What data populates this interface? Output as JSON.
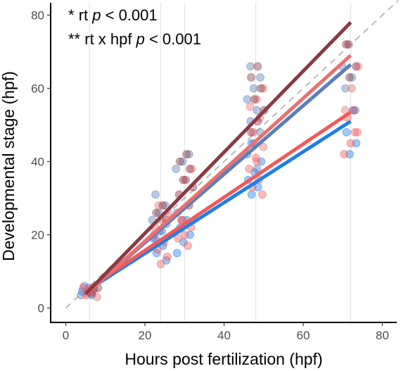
{
  "chart_data": {
    "type": "scatter",
    "xlabel": "Hours post fertilization (hpf)",
    "ylabel": "Developmental stage (hpf)",
    "xlim": [
      -4,
      84
    ],
    "ylim": [
      -3,
      81
    ],
    "xticks": [
      0,
      20,
      40,
      60,
      80
    ],
    "yticks": [
      0,
      20,
      40,
      60,
      80
    ],
    "x_gridlines": [
      6,
      24,
      30,
      48,
      72
    ],
    "grid": "vertical only",
    "legend": "none",
    "reference_line": {
      "style": "dashed",
      "color": "#bbbbbb",
      "from": [
        0,
        0
      ],
      "to": [
        84,
        84
      ]
    },
    "annotations": [
      {
        "stars": "* ",
        "text": "rt  ",
        "p_label": "p",
        "rel": " < 0.001",
        "position": "top-left"
      },
      {
        "stars": "** ",
        "text": "rt x hpf  ",
        "p_label": "p",
        "rel": " < 0.001",
        "position": "top-left"
      }
    ],
    "series": [
      {
        "color": "#5a7fb8",
        "line": {
          "x": [
            5,
            72
          ],
          "y": [
            3.8,
            66.5
          ]
        },
        "points": [
          {
            "x": 6,
            "ys": [
              3.5,
              4.5,
              5.5,
              6
            ]
          },
          {
            "x": 24,
            "ys": [
              19,
              21,
              24,
              26,
              28,
              31
            ]
          },
          {
            "x": 30,
            "ys": [
              24,
              28,
              31,
              35,
              38,
              40,
              42
            ]
          },
          {
            "x": 48,
            "ys": [
              38,
              42,
              45,
              48,
              51,
              54,
              57,
              60,
              63,
              66
            ]
          },
          {
            "x": 72,
            "ys": [
              54,
              60,
              63,
              66,
              72
            ]
          }
        ]
      },
      {
        "color": "#1f7fe6",
        "line": {
          "x": [
            5,
            72
          ],
          "y": [
            4.5,
            51
          ]
        },
        "points": [
          {
            "x": 6,
            "ys": [
              3.5,
              4.5,
              5.5
            ]
          },
          {
            "x": 24,
            "ys": [
              13,
              15,
              17,
              19,
              21,
              23
            ]
          },
          {
            "x": 30,
            "ys": [
              15,
              18,
              20,
              22,
              24,
              26
            ]
          },
          {
            "x": 48,
            "ys": [
              31,
              33,
              35,
              37,
              40,
              45
            ]
          },
          {
            "x": 72,
            "ys": [
              42,
              45,
              48,
              54
            ]
          }
        ]
      },
      {
        "color": "#f05a5a",
        "line": {
          "x": [
            5,
            72
          ],
          "y": [
            4.8,
            53.5
          ]
        },
        "points": [
          {
            "x": 6,
            "ys": [
              3.5,
              4.5,
              5.5
            ]
          },
          {
            "x": 24,
            "ys": [
              12,
              14,
              16,
              18,
              20
            ]
          },
          {
            "x": 30,
            "ys": [
              17,
              19,
              20,
              22,
              24
            ]
          },
          {
            "x": 48,
            "ys": [
              31,
              33,
              35,
              38,
              41
            ]
          },
          {
            "x": 72,
            "ys": [
              42,
              45,
              48,
              52,
              54
            ]
          }
        ]
      },
      {
        "color": "#e87070",
        "line": {
          "x": [
            5,
            72
          ],
          "y": [
            3.6,
            69
          ]
        },
        "points": [
          {
            "x": 6,
            "ys": [
              3,
              4,
              5
            ]
          },
          {
            "x": 24,
            "ys": [
              22,
              24,
              26,
              28
            ]
          },
          {
            "x": 30,
            "ys": [
              24,
              28,
              31,
              35,
              38
            ]
          },
          {
            "x": 48,
            "ys": [
              40,
              44,
              48,
              52,
              55,
              57,
              60
            ]
          },
          {
            "x": 72,
            "ys": [
              48,
              54,
              60,
              66,
              72
            ]
          }
        ]
      },
      {
        "color": "#8a3a45",
        "line": {
          "x": [
            5,
            72
          ],
          "y": [
            3.8,
            78
          ]
        },
        "points": [
          {
            "x": 6,
            "ys": [
              4,
              5.5
            ]
          },
          {
            "x": 24,
            "ys": [
              24,
              26,
              28
            ]
          },
          {
            "x": 30,
            "ys": [
              33,
              35,
              38,
              40,
              42
            ]
          },
          {
            "x": 48,
            "ys": [
              48,
              51,
              54,
              57,
              60,
              63,
              66
            ]
          },
          {
            "x": 72,
            "ys": [
              63,
              66,
              72
            ]
          }
        ]
      }
    ]
  }
}
